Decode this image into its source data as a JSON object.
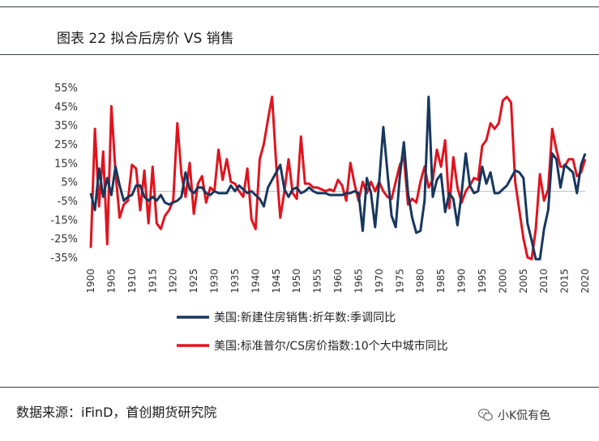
{
  "figure": {
    "title": "图表 22  拟合后房价 VS 销售",
    "source": "数据来源：iFinD，首创期货研究院",
    "watermark": "小K侃有色"
  },
  "colors": {
    "series_navy": "#17375e",
    "series_red": "#e0141e",
    "rule": "#2d3e4f"
  },
  "chart_data": {
    "type": "line",
    "x_range": [
      1900,
      2020
    ],
    "ylim": [
      -35,
      55
    ],
    "y_ticks": [
      "-35%",
      "-25%",
      "-15%",
      "-5%",
      "5%",
      "15%",
      "25%",
      "35%",
      "45%",
      "55%"
    ],
    "y_tick_values": [
      -35,
      -25,
      -15,
      -5,
      5,
      15,
      25,
      35,
      45,
      55
    ],
    "x_ticks": [
      1900,
      1905,
      1910,
      1915,
      1920,
      1925,
      1930,
      1935,
      1940,
      1945,
      1950,
      1955,
      1960,
      1965,
      1970,
      1975,
      1980,
      1985,
      1990,
      1995,
      2000,
      2005,
      2010,
      2015,
      2020
    ],
    "legend_position": "bottom",
    "series": [
      {
        "name": "美国:新建住房销售:折年数:季调同比",
        "color": "#17375e",
        "points": [
          [
            1900,
            -1
          ],
          [
            1901,
            -10
          ],
          [
            1902,
            12
          ],
          [
            1903,
            -3
          ],
          [
            1904,
            7
          ],
          [
            1905,
            -2
          ],
          [
            1906,
            13
          ],
          [
            1907,
            3
          ],
          [
            1908,
            -5
          ],
          [
            1909,
            -3
          ],
          [
            1910,
            -2
          ],
          [
            1911,
            3
          ],
          [
            1912,
            3
          ],
          [
            1913,
            -3
          ],
          [
            1914,
            -5
          ],
          [
            1915,
            -3
          ],
          [
            1916,
            -5
          ],
          [
            1917,
            -2
          ],
          [
            1918,
            -6
          ],
          [
            1919,
            -7
          ],
          [
            1920,
            -6
          ],
          [
            1921,
            -5
          ],
          [
            1922,
            -3
          ],
          [
            1923,
            10
          ],
          [
            1924,
            1
          ],
          [
            1925,
            -1
          ],
          [
            1926,
            2
          ],
          [
            1927,
            2
          ],
          [
            1928,
            -1
          ],
          [
            1929,
            -2
          ],
          [
            1930,
            0
          ],
          [
            1931,
            -1
          ],
          [
            1932,
            -1
          ],
          [
            1933,
            -1
          ],
          [
            1934,
            3
          ],
          [
            1935,
            0
          ],
          [
            1936,
            3
          ],
          [
            1937,
            1
          ],
          [
            1938,
            -1
          ],
          [
            1939,
            0
          ],
          [
            1940,
            -2
          ],
          [
            1941,
            -4
          ],
          [
            1942,
            -8
          ],
          [
            1943,
            2
          ],
          [
            1944,
            6
          ],
          [
            1945,
            10
          ],
          [
            1946,
            14
          ],
          [
            1947,
            1
          ],
          [
            1948,
            -3
          ],
          [
            1949,
            1
          ],
          [
            1950,
            2
          ],
          [
            1951,
            -1
          ],
          [
            1952,
            0
          ],
          [
            1953,
            2
          ],
          [
            1954,
            0
          ],
          [
            1955,
            -1
          ],
          [
            1956,
            -1
          ],
          [
            1957,
            -1
          ],
          [
            1958,
            -2
          ],
          [
            1959,
            -2
          ],
          [
            1960,
            -2
          ],
          [
            1961,
            -2
          ],
          [
            1962,
            -1
          ],
          [
            1963,
            -1
          ],
          [
            1964,
            0
          ],
          [
            1965,
            -1
          ],
          [
            1966,
            -21
          ],
          [
            1967,
            7
          ],
          [
            1968,
            -1
          ],
          [
            1969,
            -19
          ],
          [
            1970,
            5
          ],
          [
            1971,
            34
          ],
          [
            1972,
            10
          ],
          [
            1973,
            -13
          ],
          [
            1974,
            -19
          ],
          [
            1975,
            8
          ],
          [
            1976,
            26
          ],
          [
            1977,
            -1
          ],
          [
            1978,
            -14
          ],
          [
            1979,
            -22
          ],
          [
            1980,
            -21
          ],
          [
            1981,
            -5
          ],
          [
            1982,
            50
          ],
          [
            1983,
            -3
          ],
          [
            1984,
            6
          ],
          [
            1985,
            9
          ],
          [
            1986,
            -11
          ],
          [
            1987,
            -1
          ],
          [
            1988,
            -4
          ],
          [
            1989,
            -18
          ],
          [
            1990,
            -1
          ],
          [
            1991,
            20
          ],
          [
            1992,
            3
          ],
          [
            1993,
            -1
          ],
          [
            1994,
            0
          ],
          [
            1995,
            13
          ],
          [
            1996,
            4
          ],
          [
            1997,
            10
          ],
          [
            1998,
            -1
          ],
          [
            1999,
            -1
          ],
          [
            2000,
            1
          ],
          [
            2001,
            3
          ],
          [
            2002,
            7
          ],
          [
            2003,
            11
          ],
          [
            2004,
            10
          ],
          [
            2005,
            7
          ],
          [
            2006,
            -17
          ],
          [
            2007,
            -26
          ],
          [
            2008,
            -36
          ],
          [
            2009,
            -36
          ],
          [
            2010,
            -20
          ],
          [
            2011,
            -10
          ],
          [
            2012,
            20
          ],
          [
            2013,
            17
          ],
          [
            2014,
            2
          ],
          [
            2015,
            14
          ],
          [
            2016,
            12
          ],
          [
            2017,
            10
          ],
          [
            2018,
            -1
          ],
          [
            2019,
            14
          ],
          [
            2020,
            20
          ]
        ]
      },
      {
        "name": "美国:标准普尔/CS房价指数:10个大中城市同比",
        "color": "#e0141e",
        "points": [
          [
            1900,
            -30
          ],
          [
            1901,
            33
          ],
          [
            1902,
            -8
          ],
          [
            1903,
            21
          ],
          [
            1904,
            -28
          ],
          [
            1905,
            45
          ],
          [
            1906,
            10
          ],
          [
            1907,
            -14
          ],
          [
            1908,
            -7
          ],
          [
            1909,
            -5
          ],
          [
            1910,
            14
          ],
          [
            1911,
            12
          ],
          [
            1912,
            -10
          ],
          [
            1913,
            11
          ],
          [
            1914,
            -17
          ],
          [
            1915,
            13
          ],
          [
            1916,
            -17
          ],
          [
            1917,
            -20
          ],
          [
            1918,
            -13
          ],
          [
            1919,
            -10
          ],
          [
            1920,
            -5
          ],
          [
            1921,
            36
          ],
          [
            1922,
            9
          ],
          [
            1923,
            -3
          ],
          [
            1924,
            15
          ],
          [
            1925,
            -12
          ],
          [
            1926,
            4
          ],
          [
            1927,
            8
          ],
          [
            1928,
            -6
          ],
          [
            1929,
            2
          ],
          [
            1930,
            0
          ],
          [
            1931,
            22
          ],
          [
            1932,
            6
          ],
          [
            1933,
            17
          ],
          [
            1934,
            5
          ],
          [
            1935,
            4
          ],
          [
            1936,
            0
          ],
          [
            1937,
            -3
          ],
          [
            1938,
            12
          ],
          [
            1939,
            -15
          ],
          [
            1940,
            -20
          ],
          [
            1941,
            17
          ],
          [
            1942,
            25
          ],
          [
            1943,
            38
          ],
          [
            1944,
            50
          ],
          [
            1945,
            14
          ],
          [
            1946,
            -14
          ],
          [
            1947,
            0
          ],
          [
            1948,
            17
          ],
          [
            1949,
            -1
          ],
          [
            1950,
            -4
          ],
          [
            1951,
            29
          ],
          [
            1952,
            4
          ],
          [
            1953,
            4
          ],
          [
            1954,
            2
          ],
          [
            1955,
            2
          ],
          [
            1956,
            1
          ],
          [
            1957,
            0
          ],
          [
            1958,
            1
          ],
          [
            1959,
            0
          ],
          [
            1960,
            6
          ],
          [
            1961,
            3
          ],
          [
            1962,
            -5
          ],
          [
            1963,
            15
          ],
          [
            1964,
            4
          ],
          [
            1965,
            -5
          ],
          [
            1966,
            5
          ],
          [
            1967,
            -1
          ],
          [
            1968,
            5
          ],
          [
            1969,
            0
          ],
          [
            1970,
            5
          ],
          [
            1971,
            0
          ],
          [
            1972,
            -3
          ],
          [
            1973,
            -4
          ],
          [
            1974,
            5
          ],
          [
            1975,
            14
          ],
          [
            1976,
            18
          ],
          [
            1977,
            -7
          ],
          [
            1978,
            -4
          ],
          [
            1979,
            -6
          ],
          [
            1980,
            5
          ],
          [
            1981,
            13
          ],
          [
            1982,
            2
          ],
          [
            1983,
            6
          ],
          [
            1984,
            22
          ],
          [
            1985,
            13
          ],
          [
            1986,
            27
          ],
          [
            1987,
            -9
          ],
          [
            1988,
            18
          ],
          [
            1989,
            2
          ],
          [
            1990,
            -6
          ],
          [
            1991,
            0
          ],
          [
            1992,
            3
          ],
          [
            1993,
            7
          ],
          [
            1994,
            6
          ],
          [
            1995,
            24
          ],
          [
            1996,
            27
          ],
          [
            1997,
            36
          ],
          [
            1998,
            33
          ],
          [
            1999,
            36
          ],
          [
            2000,
            48
          ],
          [
            2001,
            50
          ],
          [
            2002,
            47
          ],
          [
            2003,
            5
          ],
          [
            2004,
            -10
          ],
          [
            2005,
            -25
          ],
          [
            2006,
            -35
          ],
          [
            2007,
            -36
          ],
          [
            2008,
            -20
          ],
          [
            2009,
            9
          ],
          [
            2010,
            -5
          ],
          [
            2011,
            1
          ],
          [
            2012,
            33
          ],
          [
            2013,
            22
          ],
          [
            2014,
            13
          ],
          [
            2015,
            13
          ],
          [
            2016,
            17
          ],
          [
            2017,
            17
          ],
          [
            2018,
            8
          ],
          [
            2019,
            10
          ],
          [
            2020,
            17
          ]
        ]
      }
    ]
  }
}
